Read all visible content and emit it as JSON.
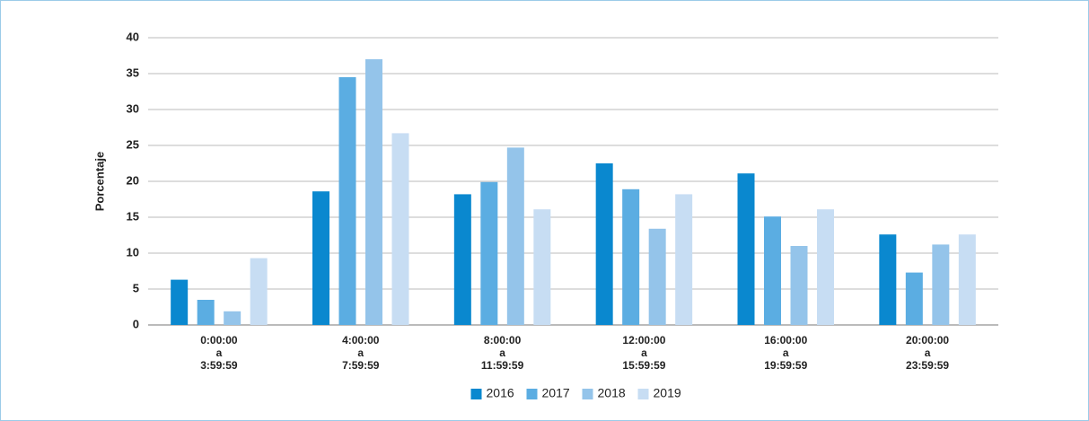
{
  "chart_data": {
    "type": "bar",
    "y_label": "Porcentaje",
    "categories": [
      "0:00:00\na\n3:59:59",
      "4:00:00\na\n7:59:59",
      "8:00:00\na\n11:59:59",
      "12:00:00\na\n15:59:59",
      "16:00:00\na\n19:59:59",
      "20:00:00\na\n23:59:59"
    ],
    "series": [
      {
        "name": "2016",
        "color": "#0a88cf",
        "values": [
          6.3,
          18.6,
          18.2,
          22.5,
          21.1,
          12.6
        ]
      },
      {
        "name": "2017",
        "color": "#5badE2",
        "values": [
          3.5,
          34.5,
          19.9,
          18.9,
          15.1,
          7.3
        ]
      },
      {
        "name": "2018",
        "color": "#94c4ea",
        "values": [
          1.9,
          37.0,
          24.7,
          13.4,
          11.0,
          11.2
        ]
      },
      {
        "name": "2019",
        "color": "#c7ddf3",
        "values": [
          9.3,
          26.7,
          16.1,
          18.2,
          16.1,
          12.6
        ]
      }
    ],
    "ylim": [
      0,
      40
    ],
    "yticks": [
      0,
      5,
      10,
      15,
      20,
      25,
      30,
      35,
      40
    ],
    "grid": true,
    "legend": "bottom"
  }
}
